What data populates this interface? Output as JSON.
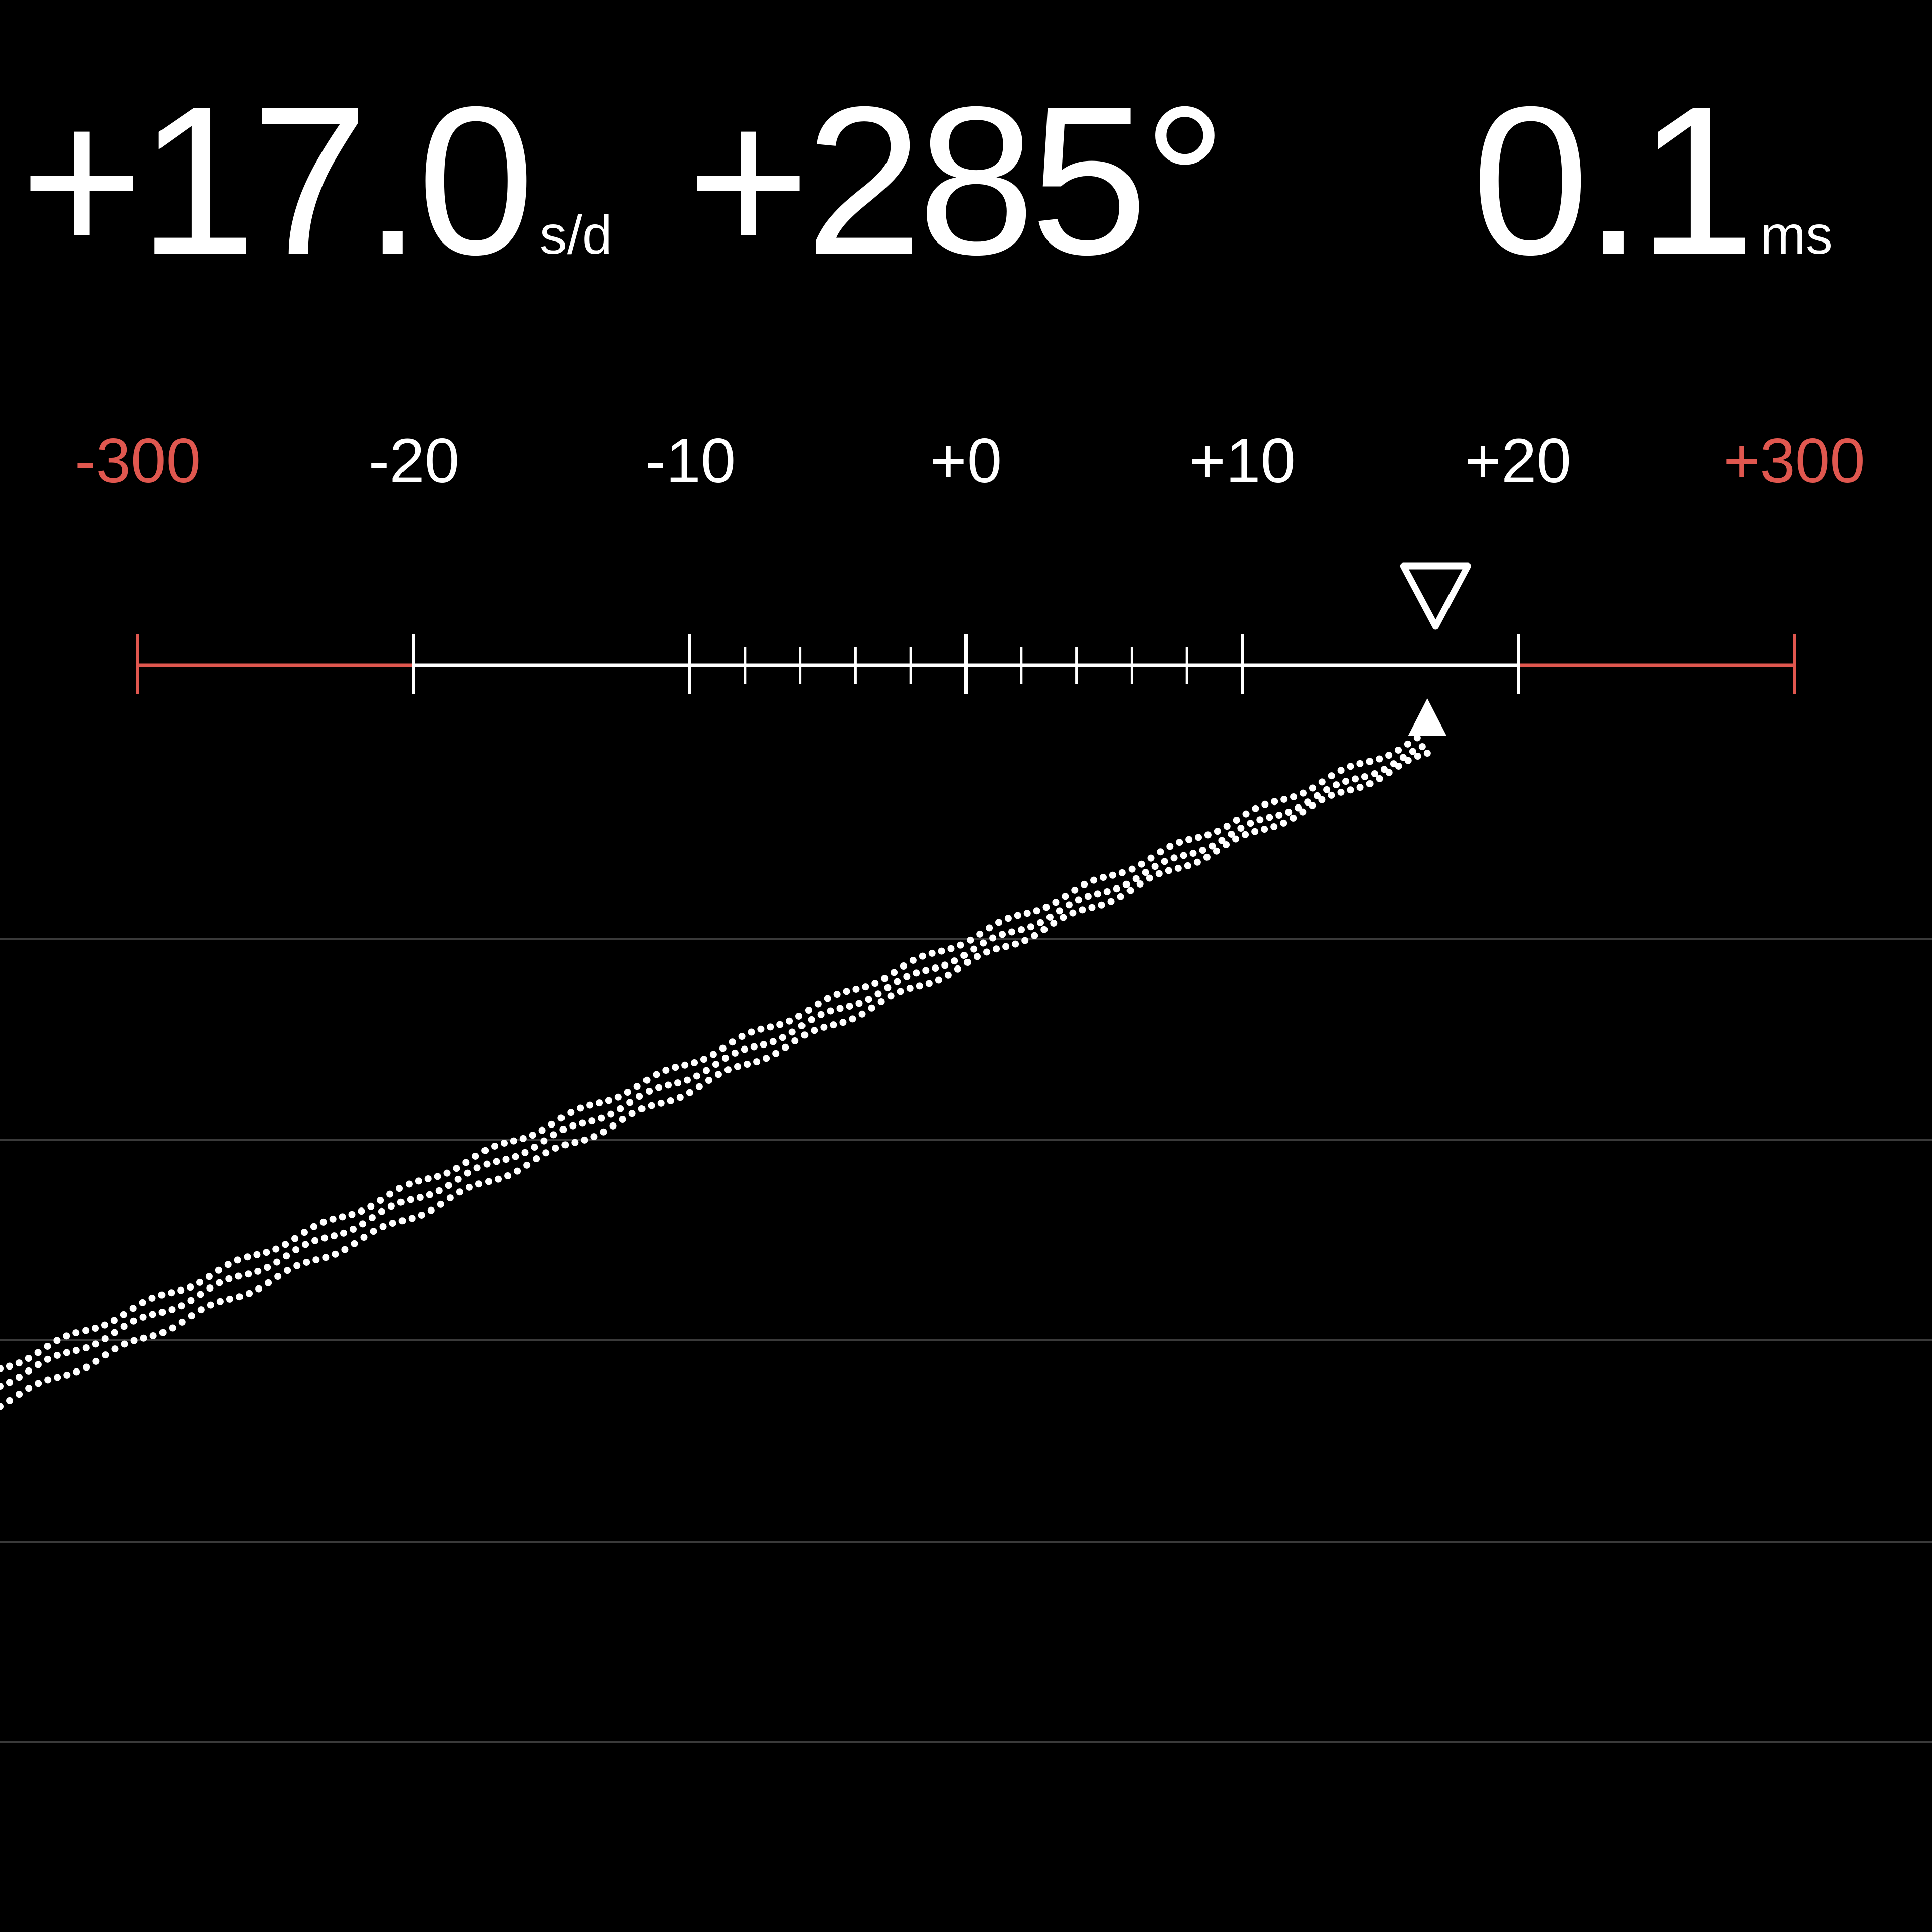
{
  "readouts": {
    "rate": {
      "value": "+17.0",
      "unit": "s/d"
    },
    "beat_error_angle": {
      "value": "+285°"
    },
    "beat_error": {
      "value": "0.1",
      "unit": "ms"
    }
  },
  "scale": {
    "labels": [
      "-300",
      "-20",
      "-10",
      "+0",
      "+10",
      "+20",
      "+300"
    ],
    "out_of_range_color": "#e0574f",
    "in_range_color": "#ffffff",
    "current_rate_marker": 17.0,
    "trace_marker": 16.7,
    "minor_step": 2
  },
  "trace": {
    "style": "dotted",
    "color": "#ffffff",
    "grid_color": "#3a3a3a",
    "gridlines": 5
  }
}
